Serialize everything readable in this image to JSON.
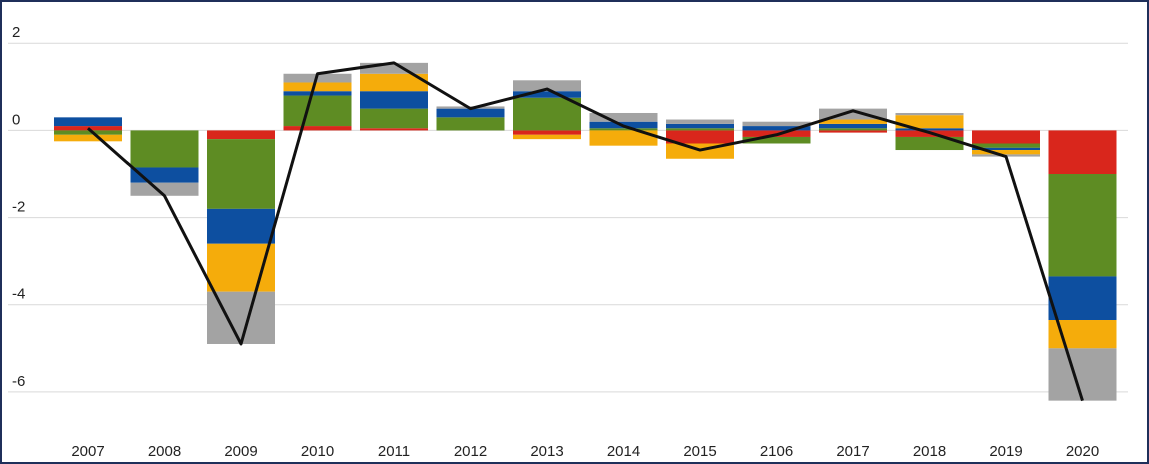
{
  "chart_data": {
    "type": "stacked_bar_line",
    "categories": [
      "2007",
      "2008",
      "2009",
      "2010",
      "2011",
      "2012",
      "2013",
      "2014",
      "2015",
      "2106",
      "2017",
      "2018",
      "2019",
      "2020"
    ],
    "series": [
      {
        "color": "#d9261c",
        "values": [
          0.1,
          0,
          -0.2,
          0.1,
          0.05,
          0,
          -0.1,
          0,
          -0.3,
          -0.15,
          -0.05,
          -0.15,
          -0.3,
          -1.0
        ]
      },
      {
        "color": "#5e8c23",
        "values": [
          -0.1,
          -0.85,
          -1.6,
          0.7,
          0.45,
          0.3,
          0.75,
          0.05,
          0.05,
          -0.15,
          0.05,
          -0.3,
          -0.1,
          -2.35
        ]
      },
      {
        "color": "#0d4fa0",
        "values": [
          0.2,
          -0.35,
          -0.8,
          0.1,
          0.4,
          0.2,
          0.15,
          0.15,
          0.1,
          0.1,
          0.1,
          0.05,
          -0.05,
          -1.0
        ]
      },
      {
        "color": "#f5ac0b",
        "values": [
          -0.15,
          0,
          -1.1,
          0.2,
          0.4,
          0,
          -0.1,
          -0.35,
          -0.35,
          0,
          0.1,
          0.3,
          -0.1,
          -0.65
        ]
      },
      {
        "color": "#a3a3a3",
        "values": [
          0,
          -0.3,
          -1.2,
          0.2,
          0.25,
          0.05,
          0.25,
          0.2,
          0.1,
          0.1,
          0.25,
          0.05,
          -0.05,
          -1.2
        ]
      }
    ],
    "line": {
      "color": "#111111",
      "values": [
        0.05,
        -1.5,
        -4.9,
        1.3,
        1.55,
        0.5,
        0.95,
        0.1,
        -0.45,
        -0.1,
        0.45,
        -0.05,
        -0.6,
        -6.2
      ]
    },
    "ylim": [
      -6.3,
      2.35
    ],
    "yticks": [
      2,
      0,
      -2,
      -4,
      -6
    ],
    "grid": true
  }
}
